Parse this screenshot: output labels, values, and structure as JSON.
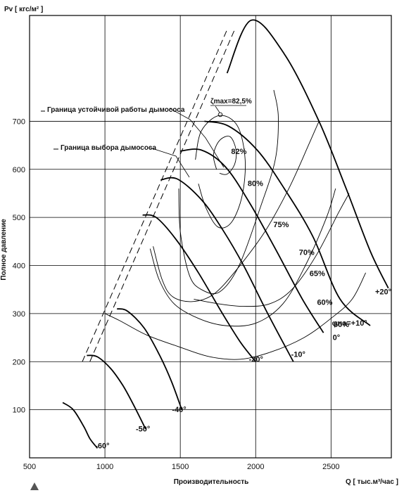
{
  "chart_data": {
    "type": "line",
    "y_axis_title": "Pv [ кгс/м² ]",
    "y_axis_side_label": "Полное давление",
    "x_axis_title": "Производительность",
    "x_axis_units": "Q [ тыс.м³/час ]",
    "xlim": [
      500,
      2900
    ],
    "ylim": [
      0,
      920
    ],
    "x_ticks": [
      500,
      1000,
      1500,
      2000,
      2500
    ],
    "y_ticks": [
      100,
      200,
      300,
      400,
      500,
      600,
      700
    ],
    "grid": true,
    "legend_labels": {
      "stability_boundary": "Граница устойчивой работы дымососа",
      "selection_boundary": "Граница выбора дымососа"
    },
    "eta_max_label": "ζmax=82,5%",
    "pressure_curves": [
      {
        "name": "+20°",
        "points": [
          [
            1810,
            800
          ],
          [
            1970,
            910
          ],
          [
            2190,
            840
          ],
          [
            2420,
            700
          ],
          [
            2600,
            560
          ],
          [
            2760,
            430
          ],
          [
            2880,
            353
          ]
        ]
      },
      {
        "name": "φна=+10°",
        "points": [
          [
            1660,
            700
          ],
          [
            1820,
            690
          ],
          [
            2010,
            640
          ],
          [
            2190,
            560
          ],
          [
            2380,
            460
          ],
          [
            2560,
            330
          ],
          [
            2760,
            275
          ]
        ]
      },
      {
        "name": "0°",
        "points": [
          [
            1500,
            638
          ],
          [
            1640,
            640
          ],
          [
            1800,
            605
          ],
          [
            1960,
            530
          ],
          [
            2130,
            435
          ],
          [
            2310,
            330
          ],
          [
            2450,
            260
          ]
        ]
      },
      {
        "name": "-10°",
        "points": [
          [
            1370,
            578
          ],
          [
            1480,
            580
          ],
          [
            1640,
            537
          ],
          [
            1780,
            475
          ],
          [
            1920,
            400
          ],
          [
            2080,
            300
          ],
          [
            2250,
            200
          ]
        ]
      },
      {
        "name": "-20°",
        "points": [
          [
            1250,
            505
          ],
          [
            1340,
            500
          ],
          [
            1470,
            455
          ],
          [
            1620,
            385
          ],
          [
            1780,
            300
          ],
          [
            1900,
            240
          ],
          [
            2000,
            200
          ]
        ]
      },
      {
        "name": "-40°",
        "points": [
          [
            1080,
            310
          ],
          [
            1150,
            305
          ],
          [
            1260,
            270
          ],
          [
            1360,
            215
          ],
          [
            1440,
            160
          ],
          [
            1510,
            100
          ]
        ]
      },
      {
        "name": "-50°",
        "points": [
          [
            880,
            213
          ],
          [
            950,
            210
          ],
          [
            1040,
            185
          ],
          [
            1120,
            150
          ],
          [
            1190,
            110
          ],
          [
            1270,
            60
          ]
        ]
      },
      {
        "name": "-60°",
        "points": [
          [
            720,
            115
          ],
          [
            790,
            100
          ],
          [
            860,
            65
          ],
          [
            900,
            40
          ],
          [
            950,
            20
          ]
        ]
      }
    ],
    "efficiency_contours": [
      {
        "name": "82%",
        "points": [
          [
            1740,
            600
          ],
          [
            1720,
            630
          ],
          [
            1760,
            660
          ],
          [
            1830,
            668
          ],
          [
            1870,
            640
          ],
          [
            1860,
            610
          ],
          [
            1810,
            590
          ],
          [
            1760,
            592
          ]
        ]
      },
      {
        "name": "80%",
        "points": [
          [
            1600,
            620
          ],
          [
            1640,
            680
          ],
          [
            1760,
            712
          ],
          [
            1880,
            690
          ],
          [
            1930,
            620
          ],
          [
            1910,
            545
          ],
          [
            1840,
            490
          ],
          [
            1750,
            480
          ],
          [
            1670,
            520
          ],
          [
            1620,
            570
          ]
        ]
      },
      {
        "name": "75%",
        "points": [
          [
            1490,
            560
          ],
          [
            1500,
            470
          ],
          [
            1560,
            380
          ],
          [
            1640,
            350
          ],
          [
            1760,
            345
          ],
          [
            1890,
            400
          ],
          [
            2030,
            520
          ],
          [
            2130,
            620
          ],
          [
            2150,
            710
          ],
          [
            2120,
            765
          ]
        ]
      },
      {
        "name": "70%",
        "points": [
          [
            1320,
            440
          ],
          [
            1380,
            370
          ],
          [
            1450,
            335
          ],
          [
            1580,
            325
          ],
          [
            1720,
            340
          ],
          [
            1870,
            390
          ],
          [
            2060,
            470
          ],
          [
            2220,
            560
          ],
          [
            2350,
            650
          ],
          [
            2420,
            700
          ]
        ]
      },
      {
        "name": "65%",
        "points": [
          [
            1300,
            435
          ],
          [
            1360,
            370
          ],
          [
            1460,
            320
          ],
          [
            1620,
            290
          ],
          [
            1800,
            275
          ],
          [
            2000,
            280
          ],
          [
            2180,
            320
          ],
          [
            2330,
            400
          ],
          [
            2470,
            500
          ],
          [
            2530,
            560
          ]
        ]
      },
      {
        "name": "60%",
        "points": [
          [
            1590,
            330
          ],
          [
            1760,
            320
          ],
          [
            1920,
            315
          ],
          [
            2090,
            320
          ],
          [
            2240,
            350
          ],
          [
            2400,
            420
          ],
          [
            2550,
            510
          ],
          [
            2620,
            550
          ]
        ]
      },
      {
        "name": "50%",
        "points": [
          [
            1000,
            300
          ],
          [
            1100,
            285
          ],
          [
            1280,
            255
          ],
          [
            1500,
            230
          ],
          [
            1700,
            210
          ],
          [
            1900,
            205
          ],
          [
            2100,
            220
          ],
          [
            2320,
            250
          ],
          [
            2500,
            290
          ],
          [
            2640,
            330
          ],
          [
            2730,
            385
          ]
        ]
      }
    ],
    "boundary_lines": [
      {
        "name": "Граница устойчивой работы дымососа",
        "from": [
          900,
          200
        ],
        "to": [
          1860,
          890
        ]
      },
      {
        "name": "Граница выбора дымососа",
        "from": [
          850,
          200
        ],
        "to": [
          1810,
          890
        ]
      }
    ],
    "annotations": [
      {
        "text": "+20°",
        "x": 2900,
        "y": 340
      },
      {
        "text": "φна=+10°",
        "x": 2740,
        "y": 275
      },
      {
        "text": "0°",
        "x": 2560,
        "y": 245
      },
      {
        "text": "-10°",
        "x": 2330,
        "y": 210
      },
      {
        "text": "-20°",
        "x": 2050,
        "y": 200
      },
      {
        "text": "-40°",
        "x": 1540,
        "y": 95
      },
      {
        "text": "-50°",
        "x": 1300,
        "y": 55
      },
      {
        "text": "-60°",
        "x": 1030,
        "y": 20
      },
      {
        "text": "82%",
        "x": 1940,
        "y": 632
      },
      {
        "text": "80%",
        "x": 2050,
        "y": 565
      },
      {
        "text": "75%",
        "x": 2220,
        "y": 480
      },
      {
        "text": "70%",
        "x": 2390,
        "y": 422
      },
      {
        "text": "65%",
        "x": 2460,
        "y": 378
      },
      {
        "text": "60%",
        "x": 2510,
        "y": 318
      },
      {
        "text": "50%",
        "x": 2620,
        "y": 272
      }
    ]
  }
}
